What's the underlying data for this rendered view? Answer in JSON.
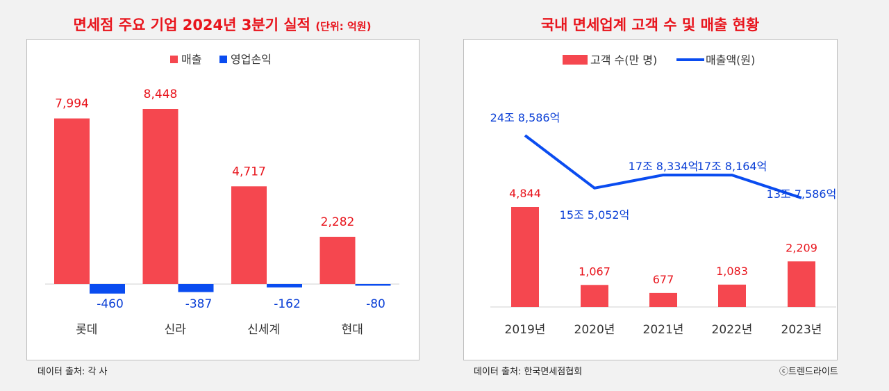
{
  "left_title": "면세점 주요 기업 2024년 3분기 실적",
  "left_title_unit": "(단위: 억원)",
  "right_title": "국내 면세업계 고객 수 및 매출 현황",
  "left_source": "데이터 출처: 각 사",
  "right_source": "데이터 출처: 한국면세점협회",
  "credit": "ⓒ트렌드라이트",
  "colors": {
    "red": "#f5474f",
    "blue": "#0a4cf0",
    "red_text": "#e8141c",
    "blue_text": "#0a3fd6"
  },
  "chart_data": [
    {
      "type": "bar",
      "title": "면세점 주요 기업 2024년 3분기 실적",
      "categories": [
        "롯데",
        "신라",
        "신세계",
        "현대"
      ],
      "series": [
        {
          "name": "매출",
          "values": [
            7994,
            8448,
            4717,
            2282
          ],
          "labels": [
            "7,994",
            "8,448",
            "4,717",
            "2,282"
          ]
        },
        {
          "name": "영업손익",
          "values": [
            -460,
            -387,
            -162,
            -80
          ],
          "labels": [
            "-460",
            "-387",
            "-162",
            "-80"
          ]
        }
      ],
      "legend": "top-center",
      "grid": false
    },
    {
      "type": "bar",
      "title": "국내 면세업계 고객 수 및 매출 현황",
      "categories": [
        "2019년",
        "2020년",
        "2021년",
        "2022년",
        "2023년"
      ],
      "series": [
        {
          "name": "고객 수(만 명)",
          "type": "bar",
          "values": [
            4844,
            1067,
            677,
            1083,
            2209
          ],
          "labels": [
            "4,844",
            "1,067",
            "677",
            "1,083",
            "2,209"
          ]
        },
        {
          "name": "매출액(원)",
          "type": "line",
          "values": [
            248586,
            155052,
            178334,
            178164,
            137586
          ],
          "labels": [
            "24조 8,586억",
            "15조 5,052억",
            "17조 8,334억",
            "17조 8,164억",
            "13조 7,586억"
          ]
        }
      ],
      "legend": "top-center",
      "grid": false
    }
  ]
}
